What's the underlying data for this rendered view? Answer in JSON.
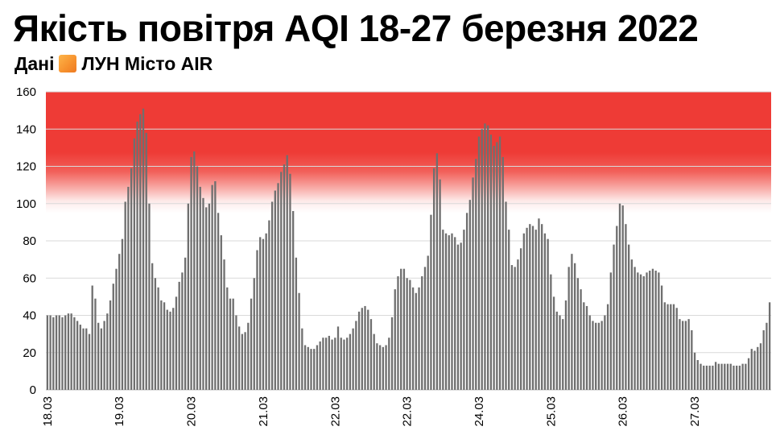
{
  "header": {
    "title": "Якість повітря AQI 18-27 березня 2022",
    "subtitle_prefix": "Дані",
    "subtitle_source": "ЛУН Місто AIR",
    "source_icon": "orange-square-icon"
  },
  "colors": {
    "bar": "#6f6f6f",
    "danger_band": "#ee3b36",
    "grid": "#d9d9d9"
  },
  "chart_data": {
    "type": "bar",
    "title": "Якість повітря AQI 18-27 березня 2022",
    "xlabel": "",
    "ylabel": "",
    "ylim": [
      0,
      160
    ],
    "yticks": [
      0,
      20,
      40,
      60,
      80,
      100,
      120,
      140,
      160
    ],
    "grid": true,
    "danger_threshold": 100,
    "x_tick_labels": [
      "18.03",
      "19.03",
      "20.03",
      "21.03",
      "22.03",
      "22.03",
      "24.03",
      "25.03",
      "26.03",
      "27.03"
    ],
    "x_tick_positions": [
      0,
      24,
      48,
      72,
      96,
      120,
      144,
      168,
      192,
      216
    ],
    "values": [
      40,
      40,
      39,
      40,
      40,
      39,
      40,
      41,
      41,
      39,
      37,
      35,
      33,
      33,
      30,
      56,
      49,
      36,
      33,
      37,
      41,
      48,
      57,
      65,
      73,
      81,
      101,
      109,
      119,
      135,
      144,
      148,
      151,
      138,
      100,
      68,
      60,
      55,
      48,
      47,
      43,
      42,
      44,
      50,
      58,
      63,
      71,
      100,
      125,
      128,
      120,
      109,
      103,
      98,
      100,
      110,
      112,
      95,
      83,
      70,
      55,
      49,
      49,
      40,
      34,
      30,
      31,
      36,
      49,
      60,
      75,
      82,
      81,
      84,
      91,
      101,
      107,
      111,
      117,
      121,
      126,
      116,
      96,
      71,
      52,
      33,
      24,
      23,
      22,
      22,
      24,
      26,
      28,
      28,
      29,
      27,
      28,
      34,
      28,
      27,
      28,
      30,
      33,
      37,
      42,
      44,
      45,
      43,
      38,
      30,
      25,
      24,
      23,
      24,
      28,
      39,
      54,
      61,
      65,
      65,
      60,
      59,
      55,
      52,
      55,
      61,
      66,
      72,
      94,
      119,
      127,
      113,
      86,
      84,
      83,
      84,
      82,
      78,
      79,
      86,
      95,
      102,
      114,
      124,
      136,
      140,
      143,
      142,
      137,
      131,
      133,
      136,
      125,
      101,
      86,
      67,
      66,
      70,
      76,
      84,
      87,
      89,
      88,
      86,
      92,
      89,
      84,
      81,
      62,
      50,
      42,
      40,
      38,
      48,
      66,
      73,
      68,
      60,
      54,
      47,
      45,
      40,
      37,
      36,
      36,
      37,
      40,
      46,
      63,
      78,
      88,
      100,
      99,
      89,
      78,
      70,
      66,
      63,
      62,
      61,
      63,
      64,
      65,
      64,
      63,
      56,
      47,
      46,
      46,
      46,
      44,
      38,
      37,
      37,
      38,
      32,
      20,
      16,
      14,
      13,
      13,
      13,
      13,
      15,
      14,
      14,
      14,
      14,
      14,
      13,
      13,
      13,
      14,
      14,
      17,
      22,
      21,
      23,
      25,
      32,
      36,
      47
    ]
  }
}
